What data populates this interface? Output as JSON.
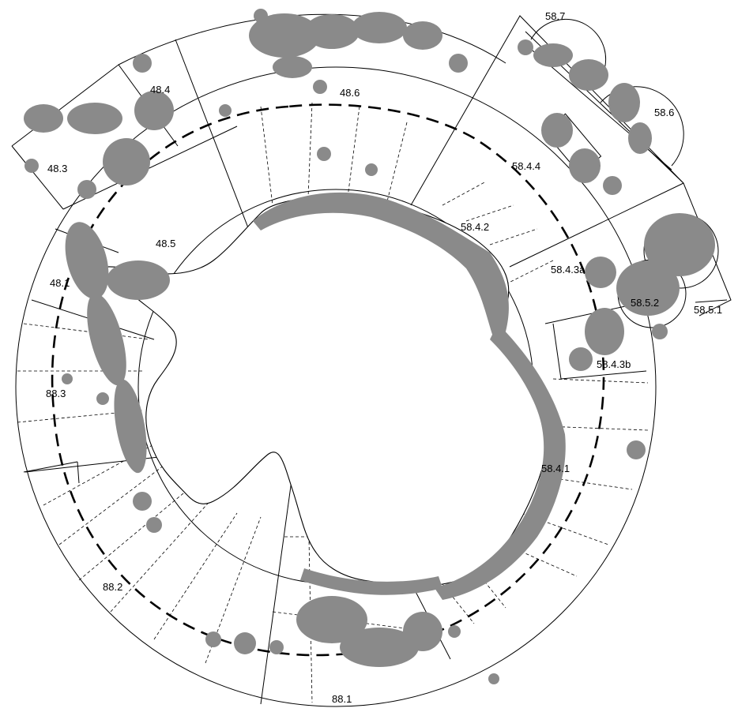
{
  "map": {
    "point_color": "#8a8a8a",
    "line_color": "#000000",
    "background": "#ffffff",
    "area_labels": [
      {
        "id": "58.7",
        "text": "58.7"
      },
      {
        "id": "58.6",
        "text": "58.6"
      },
      {
        "id": "48.4",
        "text": "48.4"
      },
      {
        "id": "48.6",
        "text": "48.6"
      },
      {
        "id": "48.3",
        "text": "48.3"
      },
      {
        "id": "58.4.4",
        "text": "58.4.4"
      },
      {
        "id": "58.4.2",
        "text": "58.4.2"
      },
      {
        "id": "48.5",
        "text": "48.5"
      },
      {
        "id": "48.1",
        "text": "48.1"
      },
      {
        "id": "58.4.3a",
        "text": "58.4.3a"
      },
      {
        "id": "58.5.2",
        "text": "58.5.2"
      },
      {
        "id": "58.5.1",
        "text": "58.5.1"
      },
      {
        "id": "58.4.3b",
        "text": "58.4.3b"
      },
      {
        "id": "88.3",
        "text": "88.3"
      },
      {
        "id": "58.4.1",
        "text": "58.4.1"
      },
      {
        "id": "88.2",
        "text": "88.2"
      },
      {
        "id": "88.1",
        "text": "88.1"
      }
    ]
  }
}
